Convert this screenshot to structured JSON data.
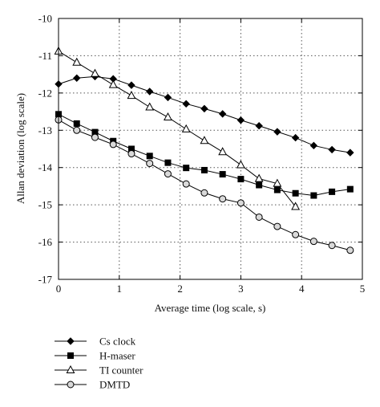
{
  "chart_data": {
    "type": "line",
    "xlabel": "Average time (log scale, s)",
    "ylabel": "Allan deviation (log scale)",
    "xlim": [
      0,
      5
    ],
    "ylim": [
      -17,
      -10
    ],
    "xticks": [
      "0",
      "1",
      "2",
      "3",
      "4",
      "5"
    ],
    "yticks": [
      "-10",
      "-11",
      "-12",
      "-13",
      "-14",
      "-15",
      "-16",
      "-17"
    ],
    "grid": true,
    "legend_position": "below",
    "series": [
      {
        "name": "Cs clock",
        "marker": "diamond",
        "marker_fill": "#000000",
        "x": [
          0,
          0.3,
          0.6,
          0.9,
          1.2,
          1.5,
          1.8,
          2.1,
          2.4,
          2.7,
          3.0,
          3.3,
          3.6,
          3.9,
          4.2,
          4.5,
          4.8
        ],
        "y": [
          -11.76,
          -11.6,
          -11.56,
          -11.62,
          -11.79,
          -11.96,
          -12.12,
          -12.29,
          -12.42,
          -12.56,
          -12.73,
          -12.88,
          -13.04,
          -13.2,
          -13.41,
          -13.52,
          -13.6
        ]
      },
      {
        "name": "H-maser",
        "marker": "square",
        "marker_fill": "#000000",
        "x": [
          0,
          0.3,
          0.6,
          0.9,
          1.2,
          1.5,
          1.8,
          2.1,
          2.4,
          2.7,
          3.0,
          3.3,
          3.6,
          3.9,
          4.2,
          4.5,
          4.8
        ],
        "y": [
          -12.57,
          -12.82,
          -13.05,
          -13.29,
          -13.5,
          -13.69,
          -13.87,
          -14.01,
          -14.07,
          -14.18,
          -14.31,
          -14.47,
          -14.6,
          -14.69,
          -14.75,
          -14.65,
          -14.58
        ]
      },
      {
        "name": "TI counter",
        "marker": "triangle",
        "marker_fill": "#ffffff",
        "x": [
          0,
          0.3,
          0.6,
          0.9,
          1.2,
          1.5,
          1.8,
          2.1,
          2.4,
          2.7,
          3.0,
          3.3,
          3.6,
          3.9
        ],
        "y": [
          -10.88,
          -11.18,
          -11.48,
          -11.78,
          -12.07,
          -12.38,
          -12.65,
          -12.97,
          -13.28,
          -13.58,
          -13.93,
          -14.3,
          -14.43,
          -15.05
        ]
      },
      {
        "name": "DMTD",
        "marker": "circle",
        "marker_fill": "#d9d9d9",
        "x": [
          0,
          0.3,
          0.6,
          0.9,
          1.2,
          1.5,
          1.8,
          2.1,
          2.4,
          2.7,
          3.0,
          3.3,
          3.6,
          3.9,
          4.2,
          4.5,
          4.8
        ],
        "y": [
          -12.72,
          -13.0,
          -13.19,
          -13.38,
          -13.63,
          -13.89,
          -14.17,
          -14.44,
          -14.68,
          -14.84,
          -14.95,
          -15.33,
          -15.58,
          -15.8,
          -15.98,
          -16.09,
          -16.22
        ]
      }
    ]
  }
}
